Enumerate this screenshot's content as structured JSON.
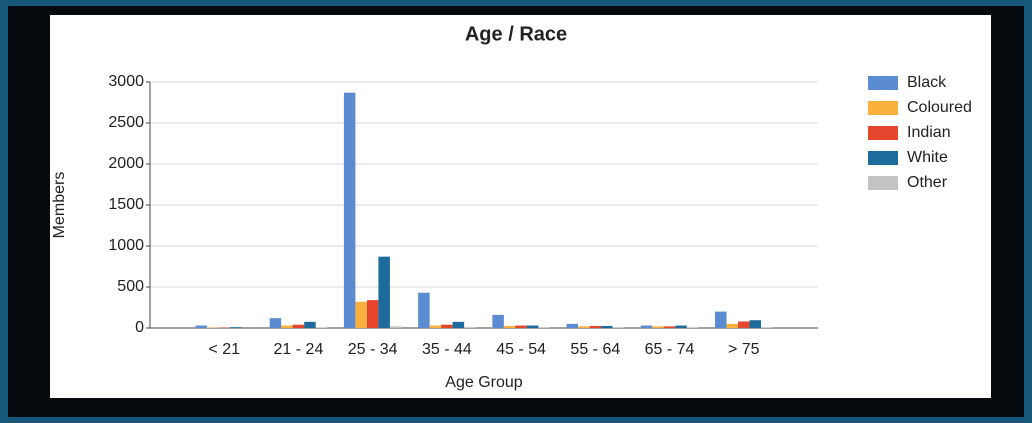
{
  "chart_data": {
    "type": "bar",
    "title": "Age / Race",
    "x_label": "Age Group",
    "y_label": "Members",
    "categories": [
      "< 21",
      "21 - 24",
      "25 - 34",
      "35 - 44",
      "45 - 54",
      "55 - 64",
      "65 - 74",
      "> 75"
    ],
    "series": [
      {
        "name": "Black",
        "color": "#5b8bd0",
        "values": [
          30,
          120,
          2870,
          430,
          160,
          50,
          30,
          200
        ]
      },
      {
        "name": "Coloured",
        "color": "#f9b03c",
        "values": [
          5,
          30,
          320,
          30,
          25,
          20,
          20,
          50
        ]
      },
      {
        "name": "Indian",
        "color": "#e4472e",
        "values": [
          5,
          40,
          340,
          40,
          30,
          25,
          20,
          80
        ]
      },
      {
        "name": "White",
        "color": "#1d6a9c",
        "values": [
          10,
          75,
          870,
          75,
          30,
          25,
          30,
          95
        ]
      },
      {
        "name": "Other",
        "color": "#c3c3c3",
        "values": [
          0,
          5,
          20,
          10,
          10,
          10,
          5,
          10
        ]
      }
    ],
    "ylim": [
      0,
      3000
    ],
    "yticks": [
      0,
      500,
      1000,
      1500,
      2000,
      2500,
      3000
    ],
    "grid": true,
    "legend": "right"
  }
}
